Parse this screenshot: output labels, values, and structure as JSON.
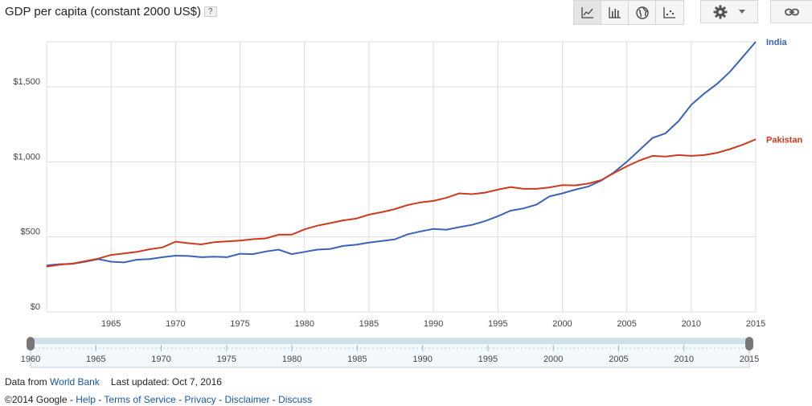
{
  "header": {
    "title": "GDP per capita (constant 2000 US$)",
    "help_label": "?"
  },
  "toolbar": {
    "buttons": [
      {
        "name": "line-chart-icon",
        "active": true
      },
      {
        "name": "bar-chart-icon",
        "active": false
      },
      {
        "name": "globe-icon",
        "active": false
      },
      {
        "name": "scatter-chart-icon",
        "active": false
      }
    ]
  },
  "footer": {
    "data_from_label": "Data from",
    "source_link": "World Bank",
    "last_updated": "Last updated: Oct 7, 2016",
    "copyright": "©2014 Google",
    "links": [
      "Help",
      "Terms of Service",
      "Privacy",
      "Disclaimer",
      "Discuss"
    ],
    "separator": " - "
  },
  "colors": {
    "india": "#3a63b8",
    "pakistan": "#cd3a1e",
    "grid": "#dcdcdc"
  },
  "chart_data": {
    "type": "line",
    "title": "GDP per capita (constant 2000 US$)",
    "xlim": [
      1960,
      2015
    ],
    "ylim": [
      0,
      1800
    ],
    "y_ticks": [
      0,
      500,
      1000,
      1500
    ],
    "y_tick_labels": [
      "$0",
      "$500",
      "$1,000",
      "$1,500"
    ],
    "x_ticks": [
      1965,
      1970,
      1975,
      1980,
      1985,
      1990,
      1995,
      2000,
      2005,
      2010,
      2015
    ],
    "slider_ticks": [
      1960,
      1965,
      1970,
      1975,
      1980,
      1985,
      1990,
      1995,
      2000,
      2005,
      2010,
      2015
    ],
    "legend": "right, at line ends",
    "grid": true,
    "x": [
      1960,
      1961,
      1962,
      1963,
      1964,
      1965,
      1966,
      1967,
      1968,
      1969,
      1970,
      1971,
      1972,
      1973,
      1974,
      1975,
      1976,
      1977,
      1978,
      1979,
      1980,
      1981,
      1982,
      1983,
      1984,
      1985,
      1986,
      1987,
      1988,
      1989,
      1990,
      1991,
      1992,
      1993,
      1994,
      1995,
      1996,
      1997,
      1998,
      1999,
      2000,
      2001,
      2002,
      2003,
      2004,
      2005,
      2006,
      2007,
      2008,
      2009,
      2010,
      2011,
      2012,
      2013,
      2014,
      2015
    ],
    "series": [
      {
        "name": "India",
        "values": [
          310,
          318,
          320,
          335,
          352,
          335,
          330,
          348,
          352,
          365,
          375,
          373,
          365,
          368,
          365,
          388,
          385,
          403,
          415,
          385,
          400,
          415,
          420,
          440,
          448,
          462,
          473,
          483,
          517,
          537,
          553,
          548,
          565,
          580,
          605,
          638,
          675,
          690,
          715,
          770,
          790,
          815,
          835,
          875,
          930,
          1000,
          1080,
          1160,
          1190,
          1270,
          1380,
          1455,
          1520,
          1600,
          1700,
          1800
        ]
      },
      {
        "name": "Pakistan",
        "values": [
          302,
          315,
          322,
          338,
          355,
          380,
          390,
          400,
          418,
          430,
          468,
          458,
          450,
          465,
          470,
          475,
          485,
          490,
          515,
          515,
          550,
          575,
          592,
          610,
          622,
          648,
          665,
          685,
          712,
          730,
          740,
          760,
          790,
          785,
          795,
          815,
          832,
          820,
          820,
          830,
          845,
          843,
          855,
          878,
          925,
          970,
          1010,
          1040,
          1035,
          1045,
          1040,
          1045,
          1060,
          1085,
          1115,
          1150
        ]
      }
    ]
  }
}
